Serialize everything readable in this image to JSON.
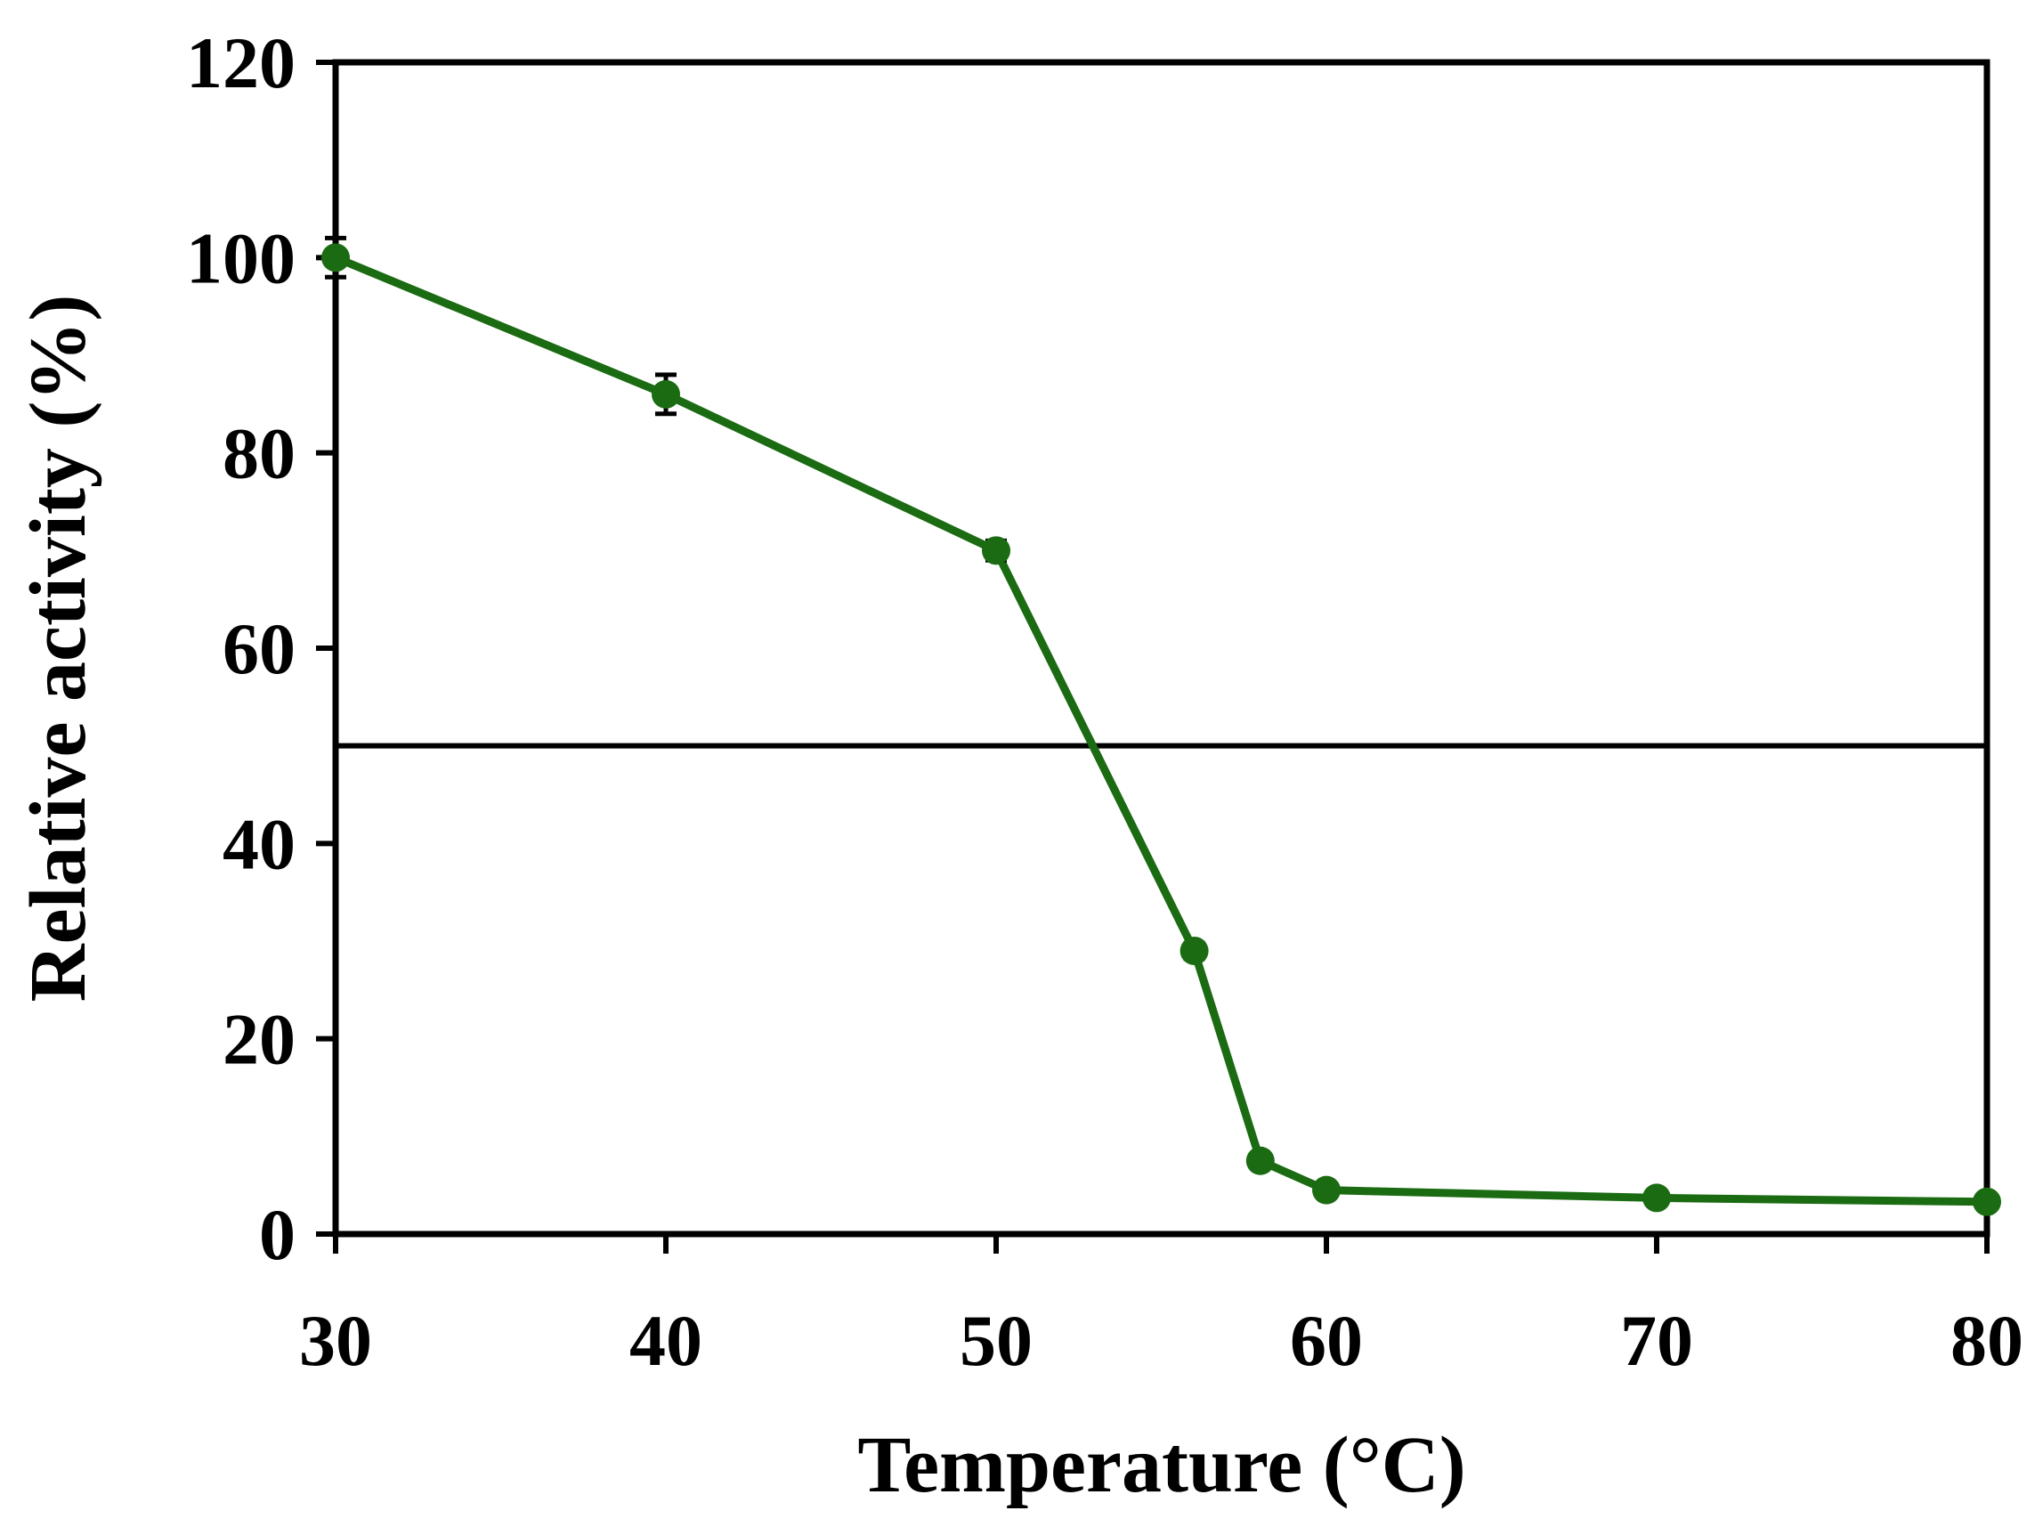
{
  "chart_data": {
    "type": "line",
    "xlabel": "Temperature (°C)",
    "ylabel": "Relative activity (%)",
    "xlim": [
      30,
      80
    ],
    "ylim": [
      0,
      120
    ],
    "xticks": [
      30,
      40,
      50,
      60,
      70,
      80
    ],
    "yticks": [
      0,
      20,
      40,
      60,
      80,
      100,
      120
    ],
    "xtick_labels": [
      "30",
      "40",
      "50",
      "60",
      "70",
      "80"
    ],
    "ytick_labels": [
      "0",
      "20",
      "40",
      "60",
      "80",
      "100",
      "120"
    ],
    "grid": false,
    "legend": "none",
    "reference_line": {
      "y": 50
    },
    "series": [
      {
        "x": [
          30,
          40,
          50,
          56,
          58,
          60,
          70,
          80
        ],
        "y": [
          100,
          86,
          70,
          29,
          7.5,
          4.5,
          3.7,
          3.3
        ],
        "error": [
          2,
          2,
          1,
          0.8,
          0.6,
          0.5,
          0.4,
          0.4
        ],
        "color": "#1a6b12"
      }
    ],
    "colors": {
      "axis": "#000000",
      "series": "#1a6b12"
    }
  }
}
